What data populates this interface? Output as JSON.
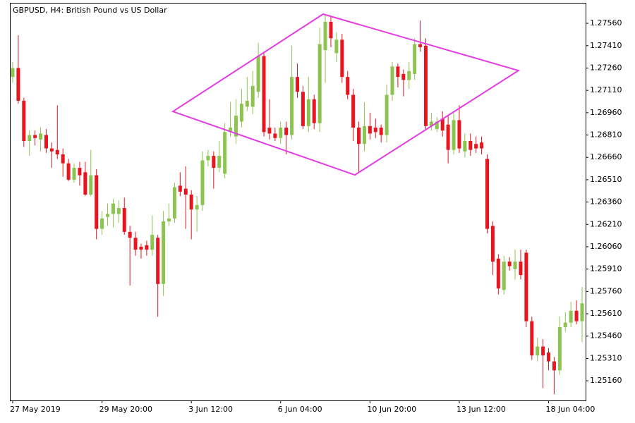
{
  "chart_data": {
    "type": "candlestick",
    "title": "GBPUSD, H4:  British Pound vs US Dollar",
    "categories": [
      "27 May 2019",
      null,
      null,
      null,
      null,
      null,
      null,
      null,
      null,
      null,
      null,
      null,
      null,
      null,
      null,
      null,
      "29 May 20:00",
      null,
      null,
      null,
      null,
      null,
      null,
      null,
      null,
      null,
      null,
      null,
      null,
      null,
      null,
      null,
      "3 Jun 12:00",
      null,
      null,
      null,
      null,
      null,
      null,
      null,
      null,
      null,
      null,
      null,
      null,
      null,
      null,
      null,
      "6 Jun 04:00",
      null,
      null,
      null,
      null,
      null,
      null,
      null,
      null,
      null,
      null,
      null,
      null,
      null,
      null,
      null,
      "10 Jun 20:00",
      null,
      null,
      null,
      null,
      null,
      null,
      null,
      null,
      null,
      null,
      null,
      null,
      null,
      null,
      null,
      "13 Jun 12:00",
      null,
      null,
      null,
      null,
      null,
      null,
      null,
      null,
      null,
      null,
      null,
      null,
      null,
      null,
      null,
      "18 Jun 04:00",
      null,
      null,
      null,
      null,
      null,
      null
    ],
    "open": [
      1.272,
      1.2726,
      1.2704,
      1.2677,
      1.2681,
      1.2678,
      1.2681,
      1.2672,
      1.2671,
      1.2668,
      1.2662,
      1.2651,
      1.2659,
      1.2656,
      1.2641,
      1.2654,
      1.2618,
      1.2626,
      1.2628,
      1.2628,
      1.2632,
      1.2616,
      1.2612,
      1.2606,
      1.2607,
      1.2604,
      1.2612,
      1.2581,
      1.2623,
      1.2625,
      1.2647,
      1.2645,
      1.2641,
      1.2631,
      1.2634,
      1.2664,
      1.2667,
      1.2659,
      1.2655,
      1.2683,
      1.268,
      1.269,
      1.27,
      1.27,
      1.271,
      1.2734,
      1.2686,
      1.2682,
      1.2679,
      1.2686,
      1.2681,
      1.272,
      1.271,
      1.2687,
      1.2705,
      1.2689,
      1.2738,
      1.2757,
      1.2736,
      1.2745,
      1.272,
      1.2708,
      1.2686,
      1.2675,
      1.2687,
      1.2686,
      1.2686,
      1.2681,
      1.2708,
      1.2727,
      1.2722,
      1.2718,
      1.2722,
      1.2742,
      1.2741,
      1.2687,
      1.2685,
      1.2692,
      1.2688,
      1.2671,
      1.2691,
      1.267,
      1.2677,
      1.2675,
      1.2676,
      1.2665,
      1.262,
      1.2598,
      1.2577,
      1.2596,
      1.2591,
      1.2596,
      1.2602,
      1.2556,
      1.2533,
      1.2539,
      1.2535,
      1.2529,
      1.2523,
      1.2552,
      1.2555,
      1.2563,
      1.2556
    ],
    "high": [
      1.273,
      1.2748,
      1.2706,
      1.2684,
      1.2684,
      1.2686,
      1.2685,
      1.2676,
      1.2701,
      1.2672,
      1.2665,
      1.2662,
      1.2663,
      1.2663,
      1.2671,
      1.2658,
      1.263,
      1.2635,
      1.2638,
      1.2637,
      1.2639,
      1.262,
      1.2616,
      1.2608,
      1.261,
      1.2627,
      1.2614,
      1.263,
      1.2635,
      1.2649,
      1.2656,
      1.266,
      1.2644,
      1.264,
      1.267,
      1.2671,
      1.267,
      1.2677,
      1.2689,
      1.2703,
      1.2705,
      1.2712,
      1.272,
      1.2724,
      1.2743,
      1.2737,
      1.2705,
      1.2686,
      1.269,
      1.269,
      1.2741,
      1.2729,
      1.2714,
      1.272,
      1.2708,
      1.2753,
      1.2762,
      1.2761,
      1.275,
      1.2749,
      1.2724,
      1.2712,
      1.269,
      1.2703,
      1.2696,
      1.2692,
      1.2688,
      1.2715,
      1.273,
      1.2729,
      1.2725,
      1.273,
      1.2746,
      1.2758,
      1.2746,
      1.2696,
      1.2693,
      1.2697,
      1.2694,
      1.2696,
      1.2701,
      1.2682,
      1.2682,
      1.268,
      1.268,
      1.2668,
      1.2623,
      1.2601,
      1.26,
      1.2599,
      1.2604,
      1.2604,
      1.2604,
      1.2559,
      1.2545,
      1.2544,
      1.2538,
      1.2532,
      1.2559,
      1.2562,
      1.2569,
      1.257,
      1.2579
    ],
    "low": [
      1.2716,
      1.2702,
      1.2673,
      1.2667,
      1.2674,
      1.267,
      1.2669,
      1.2659,
      1.2665,
      1.2653,
      1.265,
      1.2649,
      1.2647,
      1.264,
      1.264,
      1.2611,
      1.2614,
      1.262,
      1.2619,
      1.2622,
      1.2614,
      1.258,
      1.26,
      1.2598,
      1.26,
      1.26,
      1.2559,
      1.2573,
      1.262,
      1.2622,
      1.264,
      1.2618,
      1.2611,
      1.2616,
      1.263,
      1.266,
      1.2645,
      1.2656,
      1.2652,
      1.268,
      1.2675,
      1.2686,
      1.2697,
      1.2695,
      1.2706,
      1.268,
      1.2678,
      1.2677,
      1.2675,
      1.2668,
      1.2678,
      1.2706,
      1.2685,
      1.2683,
      1.2685,
      1.2683,
      1.2716,
      1.274,
      1.273,
      1.2716,
      1.2705,
      1.2677,
      1.2656,
      1.267,
      1.2678,
      1.2679,
      1.2676,
      1.2676,
      1.2704,
      1.2713,
      1.2707,
      1.2712,
      1.2718,
      1.2737,
      1.2685,
      1.2684,
      1.2683,
      1.268,
      1.2662,
      1.2668,
      1.2669,
      1.2666,
      1.2667,
      1.2669,
      1.2668,
      1.2615,
      1.2587,
      1.2574,
      1.2574,
      1.259,
      1.2584,
      1.2584,
      1.2552,
      1.253,
      1.2529,
      1.2511,
      1.2523,
      1.2507,
      1.252,
      1.2549,
      1.2552,
      1.2554,
      1.2542
    ],
    "close": [
      1.2726,
      1.2704,
      1.2677,
      1.2681,
      1.2679,
      1.2682,
      1.2672,
      1.267,
      1.2668,
      1.2662,
      1.2651,
      1.2659,
      1.2654,
      1.2641,
      1.2654,
      1.2618,
      1.2625,
      1.2628,
      1.2635,
      1.2632,
      1.2616,
      1.2612,
      1.2604,
      1.2604,
      1.2604,
      1.2614,
      1.2581,
      1.2623,
      1.2625,
      1.2646,
      1.2643,
      1.2641,
      1.2631,
      1.2634,
      1.2664,
      1.2667,
      1.2659,
      1.2667,
      1.2683,
      1.2686,
      1.2694,
      1.2702,
      1.2704,
      1.2714,
      1.2734,
      1.2683,
      1.2682,
      1.2679,
      1.2686,
      1.2681,
      1.272,
      1.271,
      1.2687,
      1.2705,
      1.2689,
      1.2742,
      1.2757,
      1.2746,
      1.2745,
      1.272,
      1.2708,
      1.2686,
      1.2675,
      1.2687,
      1.2682,
      1.2683,
      1.2681,
      1.2708,
      1.2727,
      1.272,
      1.2718,
      1.2724,
      1.2742,
      1.274,
      1.2687,
      1.269,
      1.269,
      1.2684,
      1.2671,
      1.2691,
      1.2672,
      1.2677,
      1.2671,
      1.2672,
      1.2672,
      1.2618,
      1.2596,
      1.2578,
      1.2596,
      1.2593,
      1.2596,
      1.2587,
      1.2556,
      1.2533,
      1.2539,
      1.2533,
      1.2529,
      1.2523,
      1.2552,
      1.2555,
      1.2563,
      1.2556,
      1.2568
    ],
    "up_color": "#8dc34f",
    "down_color": "#e8141e",
    "ylim": [
      1.25028,
      1.27693
    ],
    "yticks": [
      {
        "value": 1.2516,
        "label": "1.25160"
      },
      {
        "value": 1.2531,
        "label": "1.25310"
      },
      {
        "value": 1.2546,
        "label": "1.25460"
      },
      {
        "value": 1.2561,
        "label": "1.25610"
      },
      {
        "value": 1.2576,
        "label": "1.25760"
      },
      {
        "value": 1.2591,
        "label": "1.25910"
      },
      {
        "value": 1.2606,
        "label": "1.26060"
      },
      {
        "value": 1.2621,
        "label": "1.26210"
      },
      {
        "value": 1.2636,
        "label": "1.26360"
      },
      {
        "value": 1.2651,
        "label": "1.26510"
      },
      {
        "value": 1.2666,
        "label": "1.26660"
      },
      {
        "value": 1.2681,
        "label": "1.26810"
      },
      {
        "value": 1.2696,
        "label": "1.26960"
      },
      {
        "value": 1.2711,
        "label": "1.27110"
      },
      {
        "value": 1.2726,
        "label": "1.27260"
      },
      {
        "value": 1.2741,
        "label": "1.27410"
      },
      {
        "value": 1.2756,
        "label": "1.27560"
      }
    ],
    "diamond": {
      "color": "#e23ce2",
      "x": [
        28.7,
        55.6,
        90.6,
        61.3
      ],
      "y": [
        1.26968,
        1.27622,
        1.27243,
        1.26542
      ]
    }
  }
}
